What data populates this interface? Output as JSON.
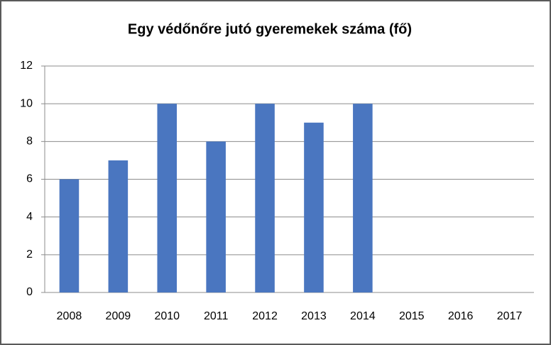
{
  "chart_data": {
    "type": "bar",
    "title": "Egy védőnőre jutó gyeremekek száma (fő)",
    "categories": [
      "2008",
      "2009",
      "2010",
      "2011",
      "2012",
      "2013",
      "2014",
      "2015",
      "2016",
      "2017"
    ],
    "values": [
      6,
      7,
      10,
      8,
      10,
      9,
      10,
      null,
      null,
      null
    ],
    "color": "#4a76c0",
    "ylim": [
      0,
      12
    ],
    "yticks": [
      0,
      2,
      4,
      6,
      8,
      10,
      12
    ],
    "grid": true
  }
}
